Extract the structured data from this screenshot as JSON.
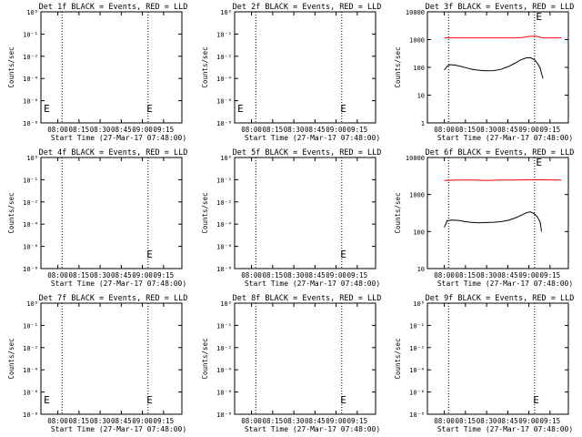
{
  "colors": {
    "events": "#000000",
    "lld": "#ff0000",
    "axis": "#000000",
    "background": "#ffffff"
  },
  "shared": {
    "xticks": [
      "08:00",
      "08:15",
      "08:30",
      "08:45",
      "09:00",
      "09:15"
    ],
    "xtick_minutes": [
      480,
      495,
      510,
      525,
      540,
      555
    ],
    "xlim_minutes": [
      468,
      568
    ],
    "xlabel": "Start Time (27-Mar-17 07:48:00)",
    "ylabel": "Counts/sec",
    "dotted_x_minutes": [
      483,
      544
    ],
    "e_marker": "E"
  },
  "chart_data": [
    {
      "id": "det1",
      "title": "Det 1f BLACK = Events, RED = LLD",
      "type": "line",
      "yscale": "log",
      "yticks": [
        "10⁻⁸",
        "10⁻⁶",
        "10⁻⁴",
        "10⁻²",
        "10⁻¹",
        "10⁰"
      ],
      "ylim": [
        1e-08,
        1
      ],
      "series": [],
      "e_marker_x": [
        470,
        543
      ]
    },
    {
      "id": "det2",
      "title": "Det 2f BLACK = Events, RED = LLD",
      "type": "line",
      "yscale": "log",
      "yticks": [
        "10⁻⁸",
        "10⁻⁶",
        "10⁻⁴",
        "10⁻²",
        "10⁻¹",
        "10⁰"
      ],
      "ylim": [
        1e-08,
        1
      ],
      "series": [],
      "e_marker_x": [
        470,
        543
      ]
    },
    {
      "id": "det3",
      "title": "Det 3f BLACK = Events, RED = LLD",
      "type": "line",
      "yscale": "log",
      "yticks": [
        "1",
        "10",
        "100",
        "1000",
        "10000"
      ],
      "ylim": [
        1,
        10000
      ],
      "e_marker_x": [
        545
      ],
      "series": [
        {
          "role": "lld",
          "x": [
            480,
            490,
            500,
            510,
            520,
            530,
            535,
            540,
            545,
            550,
            555,
            560,
            563
          ],
          "y": [
            1150,
            1150,
            1150,
            1150,
            1150,
            1150,
            1180,
            1300,
            1320,
            1150,
            1150,
            1150,
            1150
          ]
        },
        {
          "role": "events",
          "x": [
            480,
            482,
            484,
            488,
            492,
            496,
            500,
            505,
            510,
            515,
            520,
            525,
            530,
            534,
            538,
            541,
            544,
            546,
            548,
            549,
            550
          ],
          "y": [
            80,
            110,
            125,
            120,
            108,
            95,
            85,
            78,
            75,
            76,
            85,
            105,
            140,
            185,
            220,
            225,
            190,
            140,
            95,
            60,
            40
          ]
        }
      ]
    },
    {
      "id": "det4",
      "title": "Det 4f BLACK = Events, RED = LLD",
      "type": "line",
      "yscale": "log",
      "yticks": [
        "10⁻⁸",
        "10⁻⁶",
        "10⁻⁴",
        "10⁻²",
        "10⁻¹",
        "10⁰"
      ],
      "ylim": [
        1e-08,
        1
      ],
      "series": [],
      "e_marker_x": [
        543
      ]
    },
    {
      "id": "det5",
      "title": "Det 5f BLACK = Events, RED = LLD",
      "type": "line",
      "yscale": "log",
      "yticks": [
        "10⁻⁸",
        "10⁻⁶",
        "10⁻⁴",
        "10⁻²",
        "10⁻¹",
        "10⁰"
      ],
      "ylim": [
        1e-08,
        1
      ],
      "series": [],
      "e_marker_x": [
        543
      ]
    },
    {
      "id": "det6",
      "title": "Det 6f BLACK = Events, RED = LLD",
      "type": "line",
      "yscale": "log",
      "yticks": [
        "10",
        "100",
        "1000",
        "10000"
      ],
      "ylim": [
        10,
        10000
      ],
      "e_marker_x": [
        545
      ],
      "series": [
        {
          "role": "lld",
          "x": [
            480,
            490,
            500,
            510,
            520,
            530,
            540,
            550,
            560,
            563
          ],
          "y": [
            2400,
            2450,
            2450,
            2400,
            2450,
            2450,
            2500,
            2500,
            2450,
            2450
          ]
        },
        {
          "role": "events",
          "x": [
            480,
            482,
            485,
            490,
            495,
            500,
            505,
            510,
            515,
            520,
            525,
            530,
            535,
            538,
            541,
            544,
            546,
            548,
            549
          ],
          "y": [
            130,
            195,
            205,
            200,
            185,
            175,
            172,
            175,
            178,
            185,
            200,
            230,
            280,
            320,
            340,
            300,
            250,
            180,
            100
          ]
        }
      ]
    },
    {
      "id": "det7",
      "title": "Det 7f BLACK = Events, RED = LLD",
      "type": "line",
      "yscale": "log",
      "yticks": [
        "10⁻⁸",
        "10⁻⁶",
        "10⁻⁴",
        "10⁻²",
        "10⁻¹",
        "10⁰"
      ],
      "ylim": [
        1e-08,
        1
      ],
      "series": [],
      "e_marker_x": [
        470,
        543
      ]
    },
    {
      "id": "det8",
      "title": "Det 8f BLACK = Events, RED = LLD",
      "type": "line",
      "yscale": "log",
      "yticks": [
        "10⁻⁸",
        "10⁻⁶",
        "10⁻⁴",
        "10⁻²",
        "10⁻¹",
        "10⁰"
      ],
      "ylim": [
        1e-08,
        1
      ],
      "series": [],
      "e_marker_x": [
        543
      ]
    },
    {
      "id": "det9",
      "title": "Det 9f BLACK = Events, RED = LLD",
      "type": "line",
      "yscale": "log",
      "yticks": [
        "10⁻⁸",
        "10⁻⁶",
        "10⁻⁴",
        "10⁻²",
        "10⁻¹",
        "10⁰"
      ],
      "ylim": [
        1e-08,
        1
      ],
      "series": [],
      "e_marker_x": [
        543
      ]
    }
  ]
}
